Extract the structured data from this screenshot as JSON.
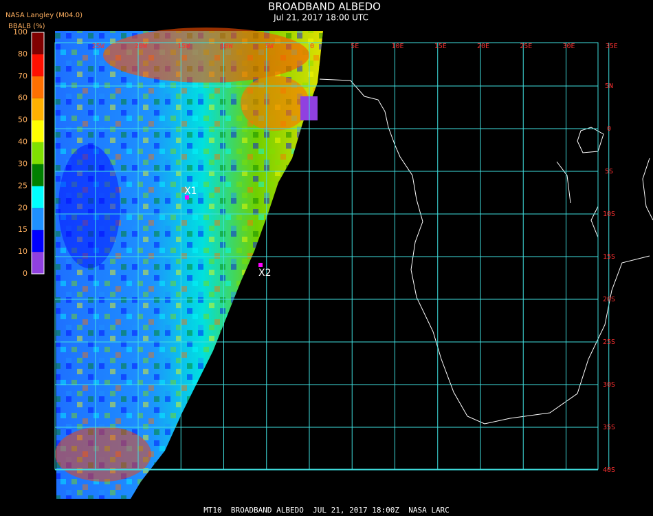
{
  "header": {
    "title": "BROADBAND ALBEDO",
    "subtitle": "Jul 21, 2017 18:00 UTC"
  },
  "legend": {
    "source": "NASA Langley (M04.0)",
    "label": "BBALB (%)",
    "ticks": [
      0,
      10,
      15,
      20,
      25,
      30,
      40,
      50,
      60,
      70,
      80,
      100
    ],
    "colors": [
      "#9040e0",
      "#0000ff",
      "#1e90ff",
      "#00ffff",
      "#008000",
      "#80e000",
      "#ffff00",
      "#ffb000",
      "#ff7000",
      "#ff1000",
      "#800000"
    ]
  },
  "map": {
    "longitudes": [
      {
        "value": -25,
        "label": "25W"
      },
      {
        "value": -20,
        "label": "20W"
      },
      {
        "value": -15,
        "label": "15W"
      },
      {
        "value": -10,
        "label": "10W"
      },
      {
        "value": -5,
        "label": "5W"
      },
      0,
      {
        "value": 5,
        "label": "5E"
      },
      {
        "value": 10,
        "label": "10E"
      },
      {
        "value": 15,
        "label": "15E"
      },
      {
        "value": 20,
        "label": "20E"
      },
      {
        "value": 25,
        "label": "25E"
      },
      {
        "value": 30,
        "label": "30E"
      },
      {
        "value": 35,
        "label": "35E"
      }
    ],
    "latitudes": [
      {
        "value": 5,
        "label": "5N"
      },
      0,
      {
        "value": -5,
        "label": "5S"
      },
      {
        "value": -10,
        "label": "10S"
      },
      {
        "value": -15,
        "label": "15S"
      },
      {
        "value": -20,
        "label": "20S"
      },
      {
        "value": -25,
        "label": "25S"
      },
      {
        "value": -30,
        "label": "30S"
      },
      {
        "value": -35,
        "label": "35S"
      },
      {
        "value": -40,
        "label": "40S"
      }
    ],
    "markers": [
      "X1",
      "X2"
    ]
  },
  "footer": "MT10  BROADBAND ALBEDO  JUL 21, 2017 18:00Z  NASA LARC"
}
